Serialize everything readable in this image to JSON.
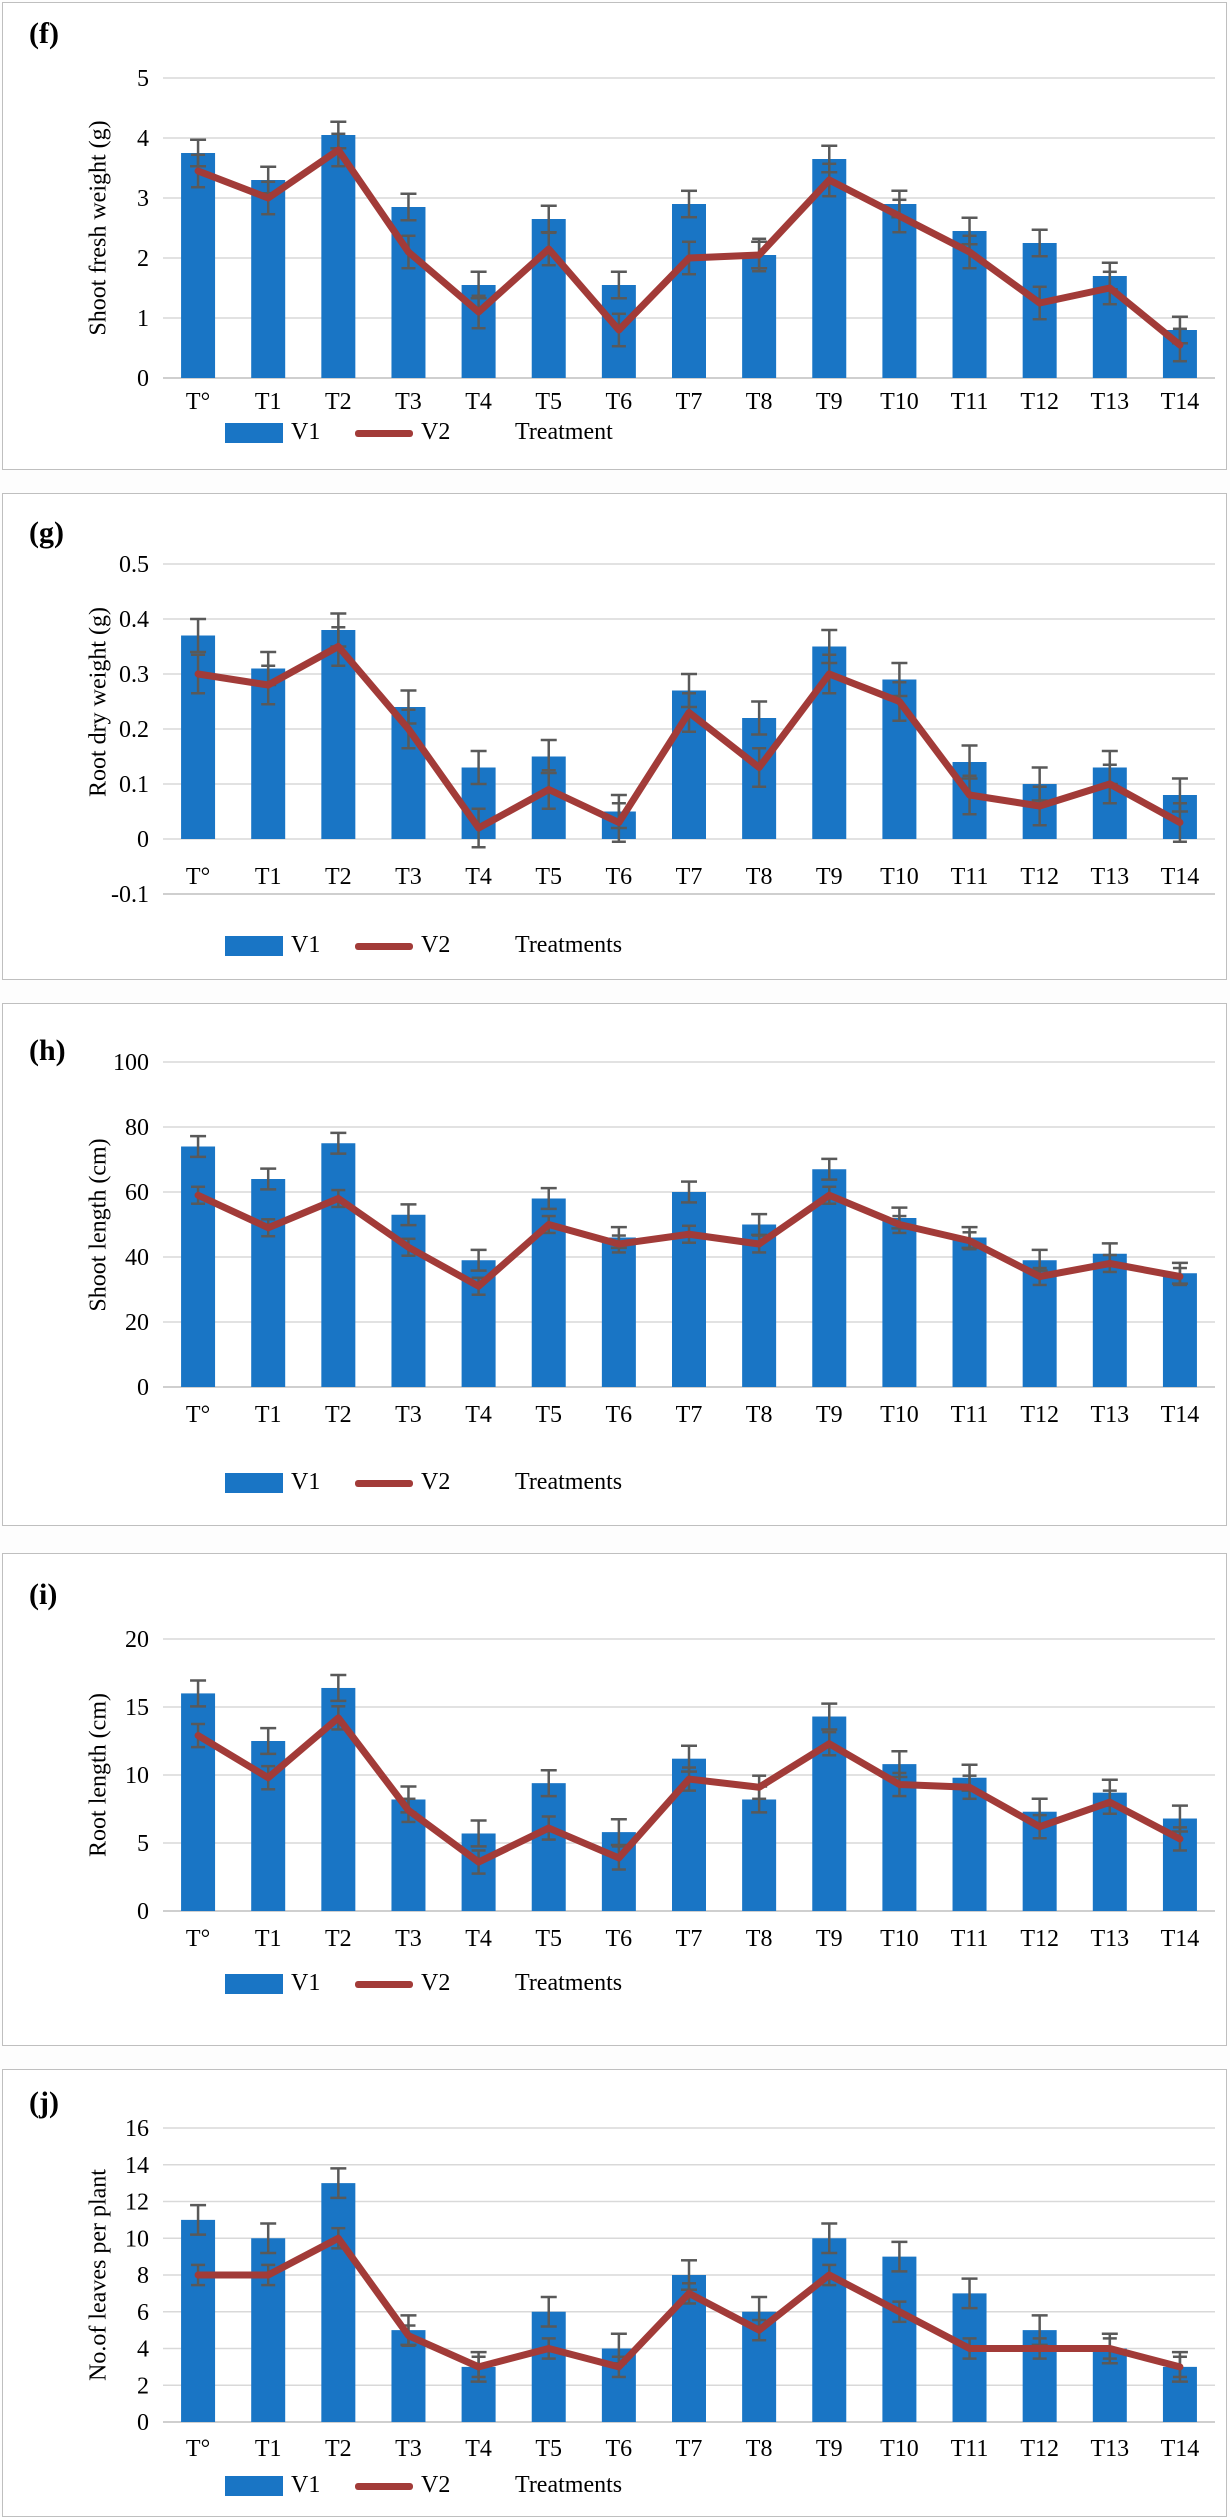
{
  "figure": {
    "description": "Five stacked bar+line treatment-response charts, panels (f) to (j)",
    "panel_count": 5
  },
  "colors": {
    "bar": "#1975c5",
    "line": "#a23b38",
    "error_bar": "#595959",
    "gridline": "#d9d9d9",
    "axis_line": "#bfbfbf",
    "panel_border": "#bfbfbf",
    "text": "#000000"
  },
  "chart_data": [
    {
      "letter": "(f)",
      "type": "bar+line",
      "title": "",
      "ylabel": "Shoot fresh weight (g)",
      "xlabel": "Treatment",
      "categories": [
        "T°",
        "T1",
        "T2",
        "T3",
        "T4",
        "T5",
        "T6",
        "T7",
        "T8",
        "T9",
        "T10",
        "T11",
        "T12",
        "T13",
        "T14"
      ],
      "yticks": [
        "5",
        "4",
        "3",
        "2",
        "1",
        "0"
      ],
      "ylim": [
        0,
        5
      ],
      "grid": true,
      "legend": {
        "v1": "V1",
        "v2": "V2",
        "position": "bottom"
      },
      "series": [
        {
          "name": "V1",
          "type": "bar",
          "error": 0.22,
          "values": [
            3.75,
            3.3,
            4.05,
            2.85,
            1.55,
            2.65,
            1.55,
            2.9,
            2.05,
            3.65,
            2.9,
            2.45,
            2.25,
            1.7,
            0.8
          ]
        },
        {
          "name": "V2",
          "type": "line",
          "error": 0.27,
          "values": [
            3.45,
            3.0,
            3.8,
            2.1,
            1.1,
            2.15,
            0.8,
            2.0,
            2.05,
            3.3,
            2.7,
            2.1,
            1.25,
            1.5,
            0.55
          ]
        }
      ]
    },
    {
      "letter": "(g)",
      "type": "bar+line",
      "title": "",
      "ylabel": "Root dry weight (g)",
      "xlabel": "Treatments",
      "categories": [
        "T°",
        "T1",
        "T2",
        "T3",
        "T4",
        "T5",
        "T6",
        "T7",
        "T8",
        "T9",
        "T10",
        "T11",
        "T12",
        "T13",
        "T14"
      ],
      "yticks": [
        "0.5",
        "0.4",
        "0.3",
        "0.2",
        "0.1",
        "0",
        "-0.1"
      ],
      "ylim": [
        -0.1,
        0.5
      ],
      "grid": true,
      "legend": {
        "v1": "V1",
        "v2": "V2",
        "position": "bottom"
      },
      "series": [
        {
          "name": "V1",
          "type": "bar",
          "error": 0.03,
          "values": [
            0.37,
            0.31,
            0.38,
            0.24,
            0.13,
            0.15,
            0.05,
            0.27,
            0.22,
            0.35,
            0.29,
            0.14,
            0.1,
            0.13,
            0.08
          ]
        },
        {
          "name": "V2",
          "type": "line",
          "error": 0.035,
          "values": [
            0.3,
            0.28,
            0.35,
            0.2,
            0.02,
            0.09,
            0.03,
            0.23,
            0.13,
            0.3,
            0.25,
            0.08,
            0.06,
            0.1,
            0.03
          ]
        }
      ]
    },
    {
      "letter": "(h)",
      "type": "bar+line",
      "title": "",
      "ylabel": "Shoot length (cm)",
      "xlabel": "Treatments",
      "categories": [
        "T°",
        "T1",
        "T2",
        "T3",
        "T4",
        "T5",
        "T6",
        "T7",
        "T8",
        "T9",
        "T10",
        "T11",
        "T12",
        "T13",
        "T14"
      ],
      "yticks": [
        "100",
        "80",
        "60",
        "40",
        "20",
        "0"
      ],
      "ylim": [
        0,
        100
      ],
      "grid": true,
      "legend": {
        "v1": "V1",
        "v2": "V2",
        "position": "bottom"
      },
      "series": [
        {
          "name": "V1",
          "type": "bar",
          "error": 3.2,
          "values": [
            74,
            64,
            75,
            53,
            39,
            58,
            46,
            60,
            50,
            67,
            52,
            46,
            39,
            41,
            35
          ]
        },
        {
          "name": "V2",
          "type": "line",
          "error": 2.6,
          "values": [
            59,
            49,
            58,
            43,
            31,
            50,
            44,
            47,
            44,
            59,
            50,
            45,
            34,
            38,
            34
          ]
        }
      ]
    },
    {
      "letter": "(i)",
      "type": "bar+line",
      "title": "",
      "ylabel": "Root length (cm)",
      "xlabel": "Treatments",
      "categories": [
        "T°",
        "T1",
        "T2",
        "T3",
        "T4",
        "T5",
        "T6",
        "T7",
        "T8",
        "T9",
        "T10",
        "T11",
        "T12",
        "T13",
        "T14"
      ],
      "yticks": [
        "20",
        "15",
        "10",
        "5",
        "0"
      ],
      "ylim": [
        0,
        20
      ],
      "grid": true,
      "legend": {
        "v1": "V1",
        "v2": "V2",
        "position": "bottom"
      },
      "series": [
        {
          "name": "V1",
          "type": "bar",
          "error": 0.95,
          "values": [
            16.0,
            12.5,
            16.4,
            8.2,
            5.7,
            9.4,
            5.8,
            11.2,
            8.2,
            14.3,
            10.8,
            9.8,
            7.3,
            8.7,
            6.8
          ]
        },
        {
          "name": "V2",
          "type": "line",
          "error": 0.85,
          "values": [
            12.9,
            9.8,
            14.2,
            7.4,
            3.6,
            6.1,
            3.9,
            9.7,
            9.1,
            12.3,
            9.3,
            9.1,
            6.2,
            8.0,
            5.3
          ]
        }
      ]
    },
    {
      "letter": "(j)",
      "type": "bar+line",
      "title": "",
      "ylabel": "No.of leaves per plant",
      "xlabel": "Treatments",
      "categories": [
        "T°",
        "T1",
        "T2",
        "T3",
        "T4",
        "T5",
        "T6",
        "T7",
        "T8",
        "T9",
        "T10",
        "T11",
        "T12",
        "T13",
        "T14"
      ],
      "yticks": [
        "16",
        "14",
        "12",
        "10",
        "8",
        "6",
        "4",
        "2",
        "0"
      ],
      "ylim": [
        0,
        16
      ],
      "grid": true,
      "legend": {
        "v1": "V1",
        "v2": "V2",
        "position": "bottom"
      },
      "series": [
        {
          "name": "V1",
          "type": "bar",
          "error": 0.8,
          "values": [
            11,
            10,
            13,
            5,
            3,
            6,
            4,
            8,
            6,
            10,
            9,
            7,
            5,
            4,
            3
          ]
        },
        {
          "name": "V2",
          "type": "line",
          "error": 0.55,
          "values": [
            8,
            8,
            10,
            4.7,
            3,
            4,
            3,
            7,
            5,
            8,
            6,
            4,
            4,
            4,
            3
          ]
        }
      ]
    }
  ]
}
